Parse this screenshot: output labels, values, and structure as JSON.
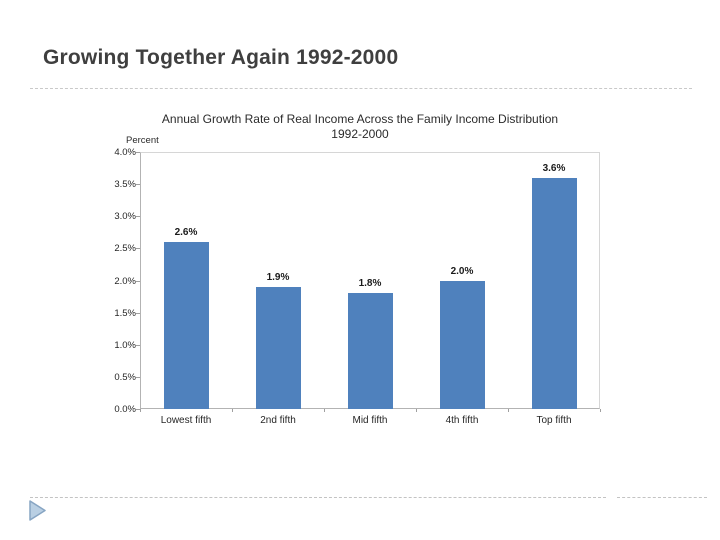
{
  "slide": {
    "title": "Growing Together Again 1992-2000"
  },
  "chart_data": {
    "type": "bar",
    "title": "Annual Growth Rate of Real Income Across the Family Income Distribution",
    "subtitle": "1992-2000",
    "axis_unit_label": "Percent",
    "categories": [
      "Lowest fifth",
      "2nd fifth",
      "Mid fifth",
      "4th fifth",
      "Top fifth"
    ],
    "values": [
      2.6,
      1.9,
      1.8,
      2.0,
      3.6
    ],
    "data_labels": [
      "2.6%",
      "1.9%",
      "1.8%",
      "2.0%",
      "3.6%"
    ],
    "ylim": [
      0,
      4
    ],
    "ytick_labels": [
      "4.0%",
      "3.5%",
      "3.0%",
      "2.5%",
      "2.0%",
      "1.5%",
      "1.0%",
      "0.5%",
      "0.0%"
    ],
    "grid": false,
    "legend": "none",
    "bar_color": "#4f81bd"
  },
  "decorations": {
    "triangle_fill": "#b9cfe3",
    "triangle_stroke": "#87a5c3",
    "dashed_line_color": "#c3c3c3"
  }
}
